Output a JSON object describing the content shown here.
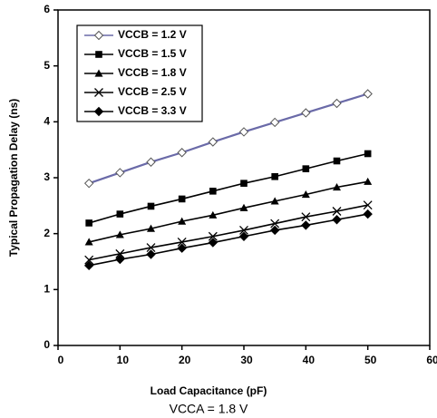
{
  "chart_data": {
    "type": "line",
    "xlabel": "Load Capacitance (pF)",
    "ylabel": "Typical Propagation Delay (ns)",
    "caption": "VCCA = 1.8 V",
    "x": [
      5,
      10,
      15,
      20,
      25,
      30,
      35,
      40,
      45,
      50
    ],
    "series": [
      {
        "name": "VCCB = 1.2 V",
        "color": "#6a6aa8",
        "marker": "diamond-open",
        "values": [
          2.9,
          3.09,
          3.28,
          3.45,
          3.64,
          3.82,
          3.99,
          4.16,
          4.33,
          4.5
        ]
      },
      {
        "name": "VCCB = 1.5 V",
        "color": "#000000",
        "marker": "square",
        "values": [
          2.19,
          2.35,
          2.49,
          2.62,
          2.76,
          2.9,
          3.02,
          3.16,
          3.3,
          3.43
        ]
      },
      {
        "name": "VCCB = 1.8 V",
        "color": "#000000",
        "marker": "triangle",
        "values": [
          1.85,
          1.98,
          2.09,
          2.22,
          2.33,
          2.46,
          2.58,
          2.7,
          2.83,
          2.93
        ]
      },
      {
        "name": "VCCB = 2.5 V",
        "color": "#000000",
        "marker": "cross",
        "values": [
          1.53,
          1.64,
          1.75,
          1.85,
          1.95,
          2.06,
          2.18,
          2.3,
          2.4,
          2.51
        ]
      },
      {
        "name": "VCCB = 3.3 V",
        "color": "#000000",
        "marker": "diamond",
        "values": [
          1.43,
          1.54,
          1.63,
          1.74,
          1.84,
          1.95,
          2.06,
          2.15,
          2.25,
          2.35
        ]
      }
    ],
    "xlim": [
      0,
      60
    ],
    "xticks": [
      0,
      10,
      20,
      30,
      40,
      50,
      60
    ],
    "ylim": [
      0,
      6
    ],
    "yticks": [
      0,
      1,
      2,
      3,
      4,
      5,
      6
    ],
    "legend": "upper-left"
  }
}
